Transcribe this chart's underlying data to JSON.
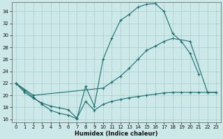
{
  "xlabel": "Humidex (Indice chaleur)",
  "bg_color": "#cce8e8",
  "grid_color": "#aacccc",
  "line_color": "#1a6e6e",
  "xlim": [
    -0.5,
    23.5
  ],
  "ylim": [
    15.5,
    35.5
  ],
  "yticks": [
    16,
    18,
    20,
    22,
    24,
    26,
    28,
    30,
    32,
    34
  ],
  "xticks": [
    0,
    1,
    2,
    3,
    4,
    5,
    6,
    7,
    8,
    9,
    10,
    11,
    12,
    13,
    14,
    15,
    16,
    17,
    18,
    19,
    20,
    21,
    22,
    23
  ],
  "line1_x": [
    0,
    1,
    2,
    3,
    4,
    5,
    6,
    7,
    8,
    9,
    10,
    11,
    12,
    13,
    14,
    15,
    16,
    17,
    18,
    19,
    20,
    21
  ],
  "line1_y": [
    22.0,
    20.8,
    19.7,
    18.5,
    17.5,
    17.0,
    16.7,
    16.1,
    21.5,
    18.2,
    26.0,
    29.5,
    32.5,
    33.5,
    34.7,
    35.2,
    35.3,
    34.0,
    30.3,
    29.0,
    27.0,
    23.5
  ],
  "line2_x": [
    0,
    2,
    10,
    11,
    12,
    13,
    14,
    15,
    16,
    17,
    18,
    20,
    22,
    23
  ],
  "line2_y": [
    22.0,
    20.0,
    21.2,
    22.2,
    23.2,
    24.5,
    26.0,
    27.5,
    28.2,
    29.0,
    29.5,
    29.0,
    20.5,
    20.5
  ],
  "line3_x": [
    0,
    1,
    2,
    3,
    4,
    5,
    6,
    7,
    8,
    9,
    10,
    11,
    12,
    13,
    14,
    15,
    16,
    17,
    18,
    19,
    20,
    21,
    22,
    23
  ],
  "line3_y": [
    22.0,
    20.5,
    19.5,
    18.7,
    18.2,
    17.9,
    17.6,
    16.2,
    19.0,
    17.5,
    18.5,
    19.0,
    19.3,
    19.6,
    19.8,
    20.0,
    20.2,
    20.4,
    20.5,
    20.5,
    20.5,
    20.5,
    20.5,
    20.5
  ]
}
